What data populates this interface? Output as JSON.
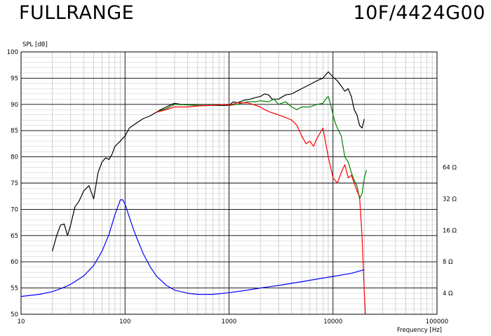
{
  "header": {
    "left_title": "FULLRANGE",
    "right_title": "10F/4424G00"
  },
  "chart_data": {
    "type": "line",
    "title": "",
    "xlabel": "Frequency [Hz]",
    "ylabel": "SPL [dB]",
    "xscale": "log",
    "xlim": [
      10,
      100000
    ],
    "ylim": [
      50,
      100
    ],
    "grid": true,
    "x_tick_labels": [
      "10",
      "100",
      "1000",
      "10000",
      "100000"
    ],
    "y_tick_labels": [
      "50",
      "55",
      "60",
      "65",
      "70",
      "75",
      "80",
      "85",
      "90",
      "95",
      "100"
    ],
    "right_axis": {
      "label_values": [
        "4 Ω",
        "8 Ω",
        "16 Ω",
        "32 Ω",
        "64 Ω"
      ],
      "label_positions_db": [
        54,
        60,
        66,
        72,
        78
      ]
    },
    "series": [
      {
        "color": "#000000",
        "points": [
          [
            20,
            62
          ],
          [
            22,
            65
          ],
          [
            24,
            67
          ],
          [
            26,
            67.2
          ],
          [
            28,
            65
          ],
          [
            30,
            67
          ],
          [
            33,
            70.5
          ],
          [
            36,
            71.5
          ],
          [
            40,
            73.5
          ],
          [
            45,
            74.5
          ],
          [
            50,
            72
          ],
          [
            55,
            77
          ],
          [
            60,
            79
          ],
          [
            65,
            79.8
          ],
          [
            70,
            79.5
          ],
          [
            75,
            80.5
          ],
          [
            80,
            82
          ],
          [
            90,
            83
          ],
          [
            100,
            84
          ],
          [
            110,
            85.5
          ],
          [
            130,
            86.5
          ],
          [
            150,
            87.3
          ],
          [
            170,
            87.7
          ],
          [
            200,
            88.5
          ],
          [
            220,
            89
          ],
          [
            250,
            89.5
          ],
          [
            280,
            90
          ],
          [
            300,
            90.2
          ],
          [
            350,
            90
          ],
          [
            400,
            90
          ],
          [
            500,
            89.8
          ],
          [
            600,
            89.8
          ],
          [
            700,
            89.8
          ],
          [
            800,
            89.8
          ],
          [
            900,
            89.8
          ],
          [
            1000,
            89.8
          ],
          [
            1100,
            90.5
          ],
          [
            1200,
            90.3
          ],
          [
            1400,
            90.8
          ],
          [
            1600,
            91
          ],
          [
            1800,
            91.3
          ],
          [
            2000,
            91.5
          ],
          [
            2200,
            92
          ],
          [
            2400,
            91.8
          ],
          [
            2600,
            91
          ],
          [
            3000,
            91
          ],
          [
            3500,
            91.8
          ],
          [
            4000,
            92
          ],
          [
            5000,
            93
          ],
          [
            6000,
            93.8
          ],
          [
            7000,
            94.5
          ],
          [
            8000,
            95
          ],
          [
            9000,
            96.2
          ],
          [
            10000,
            95.2
          ],
          [
            11000,
            94.5
          ],
          [
            12000,
            93.5
          ],
          [
            13000,
            92.5
          ],
          [
            14000,
            93
          ],
          [
            15000,
            91.5
          ],
          [
            16000,
            89
          ],
          [
            17000,
            88
          ],
          [
            18000,
            86
          ],
          [
            19000,
            85.5
          ],
          [
            20000,
            87.2
          ]
        ]
      },
      {
        "color": "#008000",
        "points": [
          [
            200,
            88.5
          ],
          [
            250,
            89.2
          ],
          [
            300,
            90
          ],
          [
            400,
            89.9
          ],
          [
            500,
            89.8
          ],
          [
            700,
            89.8
          ],
          [
            900,
            90
          ],
          [
            1000,
            89.8
          ],
          [
            1200,
            90
          ],
          [
            1500,
            90.5
          ],
          [
            1800,
            90.5
          ],
          [
            2000,
            90.7
          ],
          [
            2400,
            90.5
          ],
          [
            2700,
            91
          ],
          [
            3000,
            90
          ],
          [
            3500,
            90.5
          ],
          [
            4000,
            89.5
          ],
          [
            4500,
            89
          ],
          [
            5000,
            89.5
          ],
          [
            6000,
            89.5
          ],
          [
            7000,
            90
          ],
          [
            8000,
            90.2
          ],
          [
            8500,
            91
          ],
          [
            9000,
            91.5
          ],
          [
            9500,
            90
          ],
          [
            10000,
            88
          ],
          [
            10500,
            86.5
          ],
          [
            11000,
            85.5
          ],
          [
            12000,
            84
          ],
          [
            13000,
            80
          ],
          [
            14000,
            79
          ],
          [
            15000,
            77
          ],
          [
            16000,
            75.5
          ],
          [
            17000,
            74.5
          ],
          [
            18000,
            72
          ],
          [
            19000,
            73
          ],
          [
            20000,
            76
          ],
          [
            21000,
            77.5
          ]
        ]
      },
      {
        "color": "#ff0000",
        "points": [
          [
            200,
            88.5
          ],
          [
            250,
            89
          ],
          [
            300,
            89.5
          ],
          [
            400,
            89.5
          ],
          [
            500,
            89.7
          ],
          [
            700,
            89.8
          ],
          [
            900,
            90
          ],
          [
            1000,
            89.8
          ],
          [
            1200,
            90.3
          ],
          [
            1500,
            90.3
          ],
          [
            1700,
            90
          ],
          [
            2000,
            89.5
          ],
          [
            2200,
            89
          ],
          [
            2500,
            88.5
          ],
          [
            3000,
            88
          ],
          [
            3500,
            87.5
          ],
          [
            4000,
            87
          ],
          [
            4500,
            86
          ],
          [
            5000,
            84
          ],
          [
            5500,
            82.5
          ],
          [
            6000,
            83
          ],
          [
            6500,
            82
          ],
          [
            7000,
            83.5
          ],
          [
            8000,
            85.5
          ],
          [
            9000,
            80
          ],
          [
            10000,
            76
          ],
          [
            11000,
            75
          ],
          [
            12000,
            77
          ],
          [
            13000,
            78.5
          ],
          [
            14000,
            76
          ],
          [
            15000,
            76.5
          ],
          [
            16000,
            75
          ],
          [
            17000,
            73.5
          ],
          [
            18000,
            72.5
          ],
          [
            19000,
            65
          ],
          [
            20000,
            54
          ],
          [
            20500,
            50
          ]
        ]
      },
      {
        "color": "#0000ff",
        "points": [
          [
            10,
            53.4
          ],
          [
            15,
            53.8
          ],
          [
            20,
            54.3
          ],
          [
            25,
            55
          ],
          [
            30,
            55.7
          ],
          [
            40,
            57.3
          ],
          [
            50,
            59.3
          ],
          [
            60,
            62
          ],
          [
            70,
            65.2
          ],
          [
            80,
            69
          ],
          [
            90,
            71.8
          ],
          [
            95,
            71.8
          ],
          [
            100,
            71
          ],
          [
            110,
            68.5
          ],
          [
            120,
            66.3
          ],
          [
            130,
            64.5
          ],
          [
            150,
            61.5
          ],
          [
            175,
            59
          ],
          [
            200,
            57.3
          ],
          [
            250,
            55.5
          ],
          [
            300,
            54.6
          ],
          [
            400,
            54
          ],
          [
            500,
            53.8
          ],
          [
            700,
            53.8
          ],
          [
            1000,
            54.1
          ],
          [
            1500,
            54.6
          ],
          [
            2000,
            55
          ],
          [
            3000,
            55.5
          ],
          [
            5000,
            56.2
          ],
          [
            7000,
            56.7
          ],
          [
            10000,
            57.2
          ],
          [
            15000,
            57.8
          ],
          [
            20000,
            58.5
          ]
        ]
      }
    ]
  }
}
